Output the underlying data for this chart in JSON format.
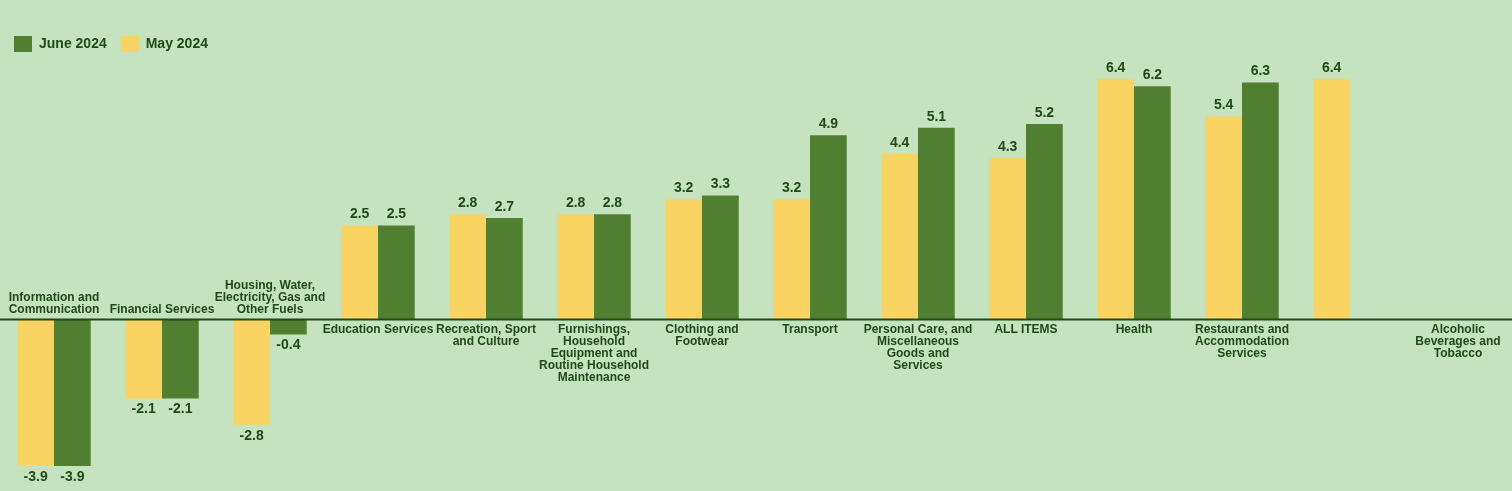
{
  "chart_data": {
    "type": "bar",
    "categories": [
      "Information and Communication",
      "Financial Services",
      "Housing, Water, Electricity, Gas and Other Fuels",
      "Education Services",
      "Recreation, Sport and Culture",
      "Furnishings, Household Equipment and Routine Household Maintenance",
      "Clothing and Footwear",
      "Transport",
      "Personal Care, and Miscellaneous Goods and Services",
      "ALL ITEMS",
      "Health",
      "Restaurants and Accommodation Services",
      null,
      "Alcoholic Beverages and Tobacco"
    ],
    "series": [
      {
        "name": "May 2024",
        "color": "#fad462",
        "values": [
          -3.9,
          -2.1,
          -2.8,
          2.5,
          2.8,
          2.8,
          3.2,
          3.2,
          4.4,
          4.3,
          6.4,
          5.4,
          6.4,
          null
        ]
      },
      {
        "name": "June 2024",
        "color": "#517f32",
        "values": [
          -3.9,
          -2.1,
          -0.4,
          2.5,
          2.7,
          2.8,
          3.3,
          4.9,
          5.1,
          5.2,
          6.2,
          6.3,
          null,
          null
        ]
      }
    ],
    "data_labels": true,
    "legend": "top left"
  }
}
